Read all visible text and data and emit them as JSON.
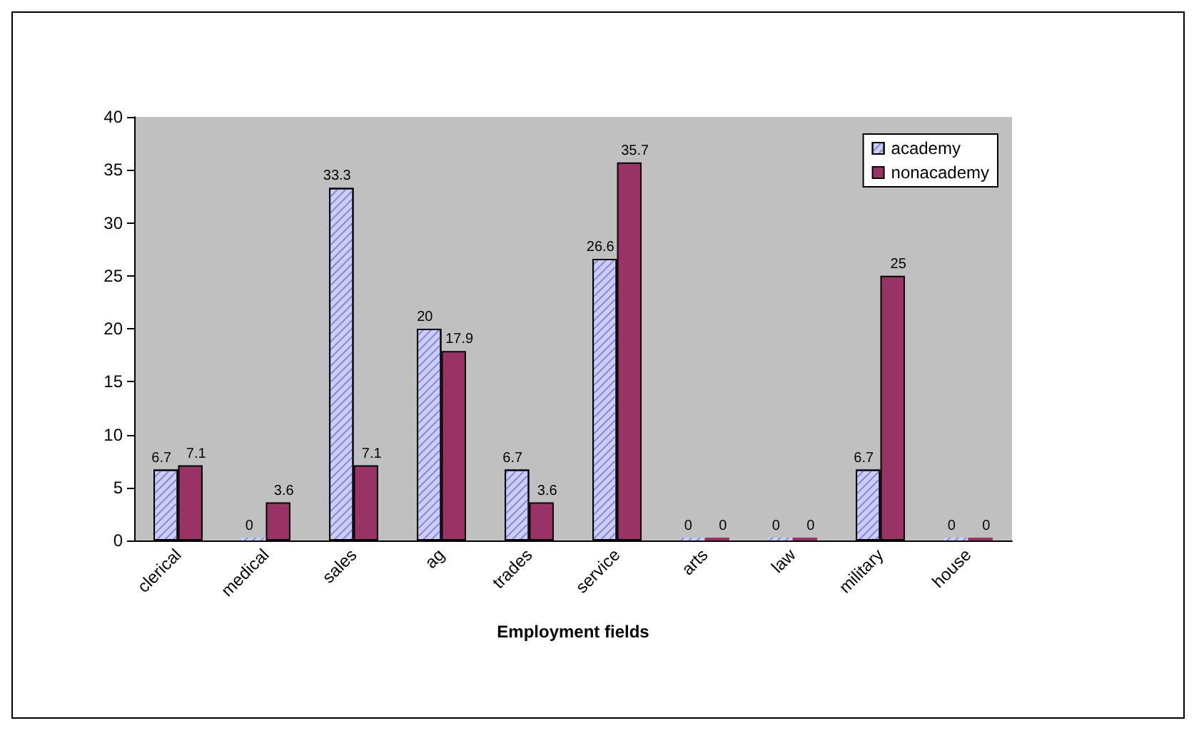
{
  "chart_data": {
    "type": "bar",
    "xlabel": "Employment fields",
    "categories": [
      "clerical",
      "medical",
      "sales",
      "ag",
      "trades",
      "service",
      "arts",
      "law",
      "military",
      "house"
    ],
    "series": [
      {
        "name": "academy",
        "color": "#ccccff",
        "values": [
          6.7,
          0,
          33.3,
          20,
          6.7,
          26.6,
          0,
          0,
          6.7,
          0
        ]
      },
      {
        "name": "nonacademy",
        "color": "#993366",
        "values": [
          7.1,
          3.6,
          7.1,
          17.9,
          3.6,
          35.7,
          0,
          0,
          25,
          0
        ]
      }
    ],
    "ylim": [
      0,
      40
    ],
    "yticks": [
      0,
      5,
      10,
      15,
      20,
      25,
      30,
      35,
      40
    ],
    "grid": false,
    "legend": "top right",
    "data_labels": true
  }
}
